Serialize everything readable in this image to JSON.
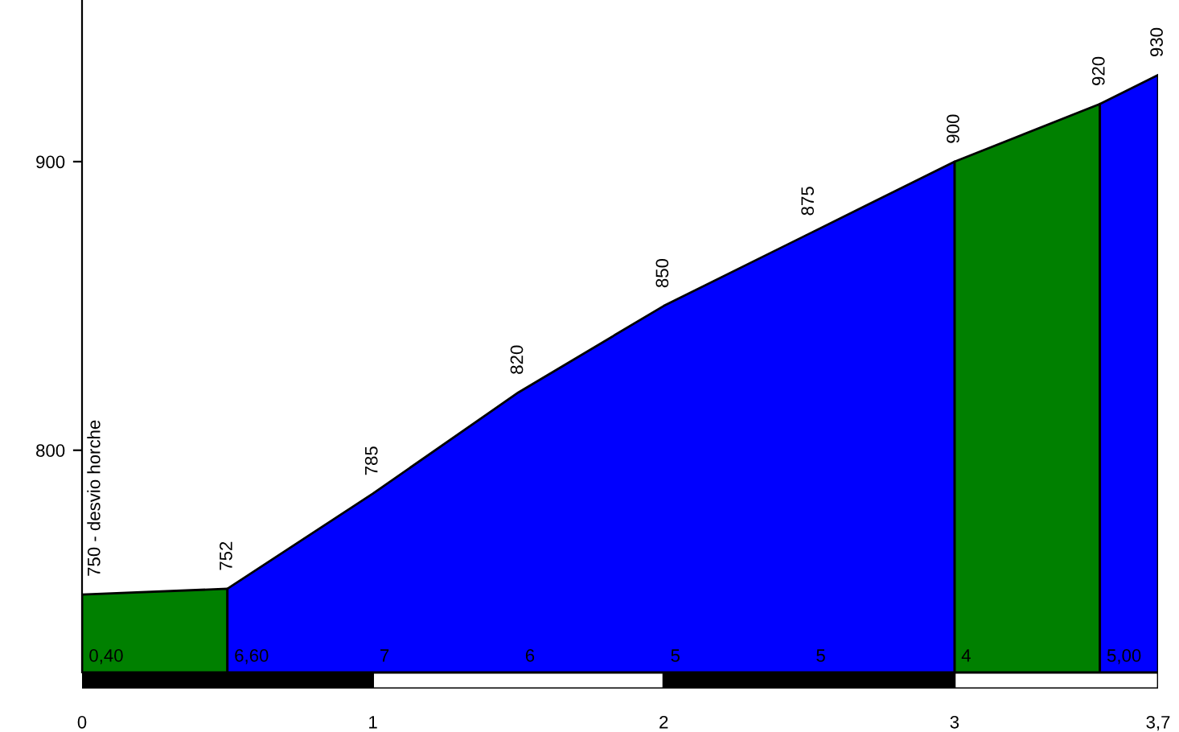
{
  "chart_data": {
    "type": "area",
    "series": [
      {
        "x": [
          0,
          0.5,
          1.75,
          3,
          3.5
        ],
        "values": [
          750,
          752,
          null,
          900,
          920
        ],
        "value_labels": [
          "750 - desvio horche",
          null,
          null,
          null,
          "920"
        ],
        "color": "#008000"
      },
      {
        "x": [
          0.5,
          1,
          1.5,
          2,
          2.5,
          3,
          3.25,
          3.5,
          3.7
        ],
        "values": [
          752,
          785,
          820,
          850,
          875,
          900,
          null,
          920,
          930
        ],
        "value_labels": [
          "752",
          "785",
          "820",
          "850",
          "875",
          "900",
          null,
          null,
          "930"
        ],
        "color": "#0000ff"
      }
    ],
    "annotations": [
      "0,40",
      "6,60",
      "7",
      "6",
      "5",
      "5",
      "4",
      "5,00"
    ],
    "xlim": [
      0,
      3.7
    ],
    "xticks": [
      0,
      1,
      2,
      3,
      {
        "value": 3.7,
        "label": "3,7"
      }
    ],
    "ylim": [
      723,
      956
    ],
    "yticks": [
      800,
      900
    ],
    "grid": false
  }
}
